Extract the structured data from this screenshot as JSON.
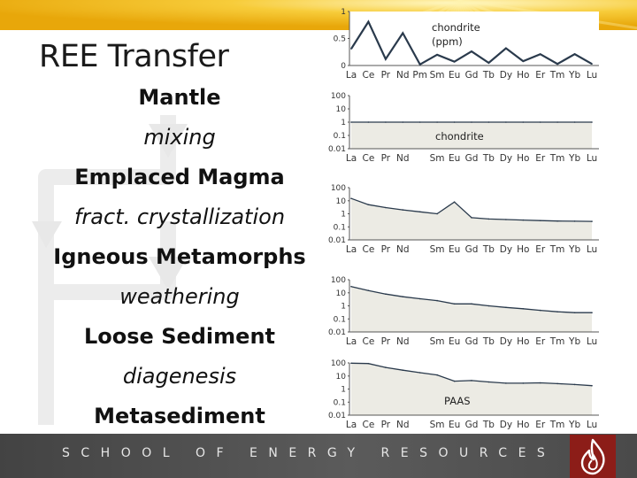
{
  "slide": {
    "title": "REE Transfer",
    "stages": [
      {
        "label": "Mantle",
        "kind": "state"
      },
      {
        "label": "mixing",
        "kind": "process"
      },
      {
        "label": "Emplaced Magma",
        "kind": "state"
      },
      {
        "label": "fract. crystallization",
        "kind": "process"
      },
      {
        "label": "Igneous Metamorphs",
        "kind": "state"
      },
      {
        "label": "weathering",
        "kind": "process"
      },
      {
        "label": "Loose Sediment",
        "kind": "state"
      },
      {
        "label": "diagenesis",
        "kind": "process"
      },
      {
        "label": "Metasediment",
        "kind": "state"
      }
    ],
    "footer": "SCHOOL OF ENERGY RESOURCES"
  },
  "colors": {
    "accent": "#f2b514",
    "plot_fill": "#ecebe4",
    "line": "#2a3a4c",
    "footer": "#4e4e4e"
  },
  "icons": [
    "flame-logo-icon",
    "cycle-arrow-icon"
  ],
  "chart_data": [
    {
      "type": "line",
      "label": "chondrite\n(ppm)",
      "categories": [
        "La",
        "Ce",
        "Pr",
        "Nd",
        "Pm",
        "Sm",
        "Eu",
        "Gd",
        "Tb",
        "Dy",
        "Ho",
        "Er",
        "Tm",
        "Yb",
        "Lu"
      ],
      "values": [
        0.31,
        0.81,
        0.12,
        0.6,
        0.02,
        0.2,
        0.07,
        0.26,
        0.05,
        0.32,
        0.08,
        0.21,
        0.03,
        0.21,
        0.03
      ],
      "ylim": [
        0,
        1
      ],
      "yticks": [
        "0",
        "0.5",
        "1"
      ],
      "yscale": "linear",
      "grid": false
    },
    {
      "type": "area",
      "label": "chondrite",
      "categories": [
        "La",
        "Ce",
        "Pr",
        "Nd",
        "",
        "Sm",
        "Eu",
        "Gd",
        "Tb",
        "Dy",
        "Ho",
        "Er",
        "Tm",
        "Yb",
        "Lu"
      ],
      "values": [
        1,
        1,
        1,
        1,
        1,
        1,
        1,
        1,
        1,
        1,
        1,
        1,
        1,
        1,
        1
      ],
      "ylim": [
        0.01,
        100
      ],
      "yticks": [
        "100",
        "10",
        "1",
        "0.1",
        "0.01"
      ],
      "yscale": "log",
      "grid": false
    },
    {
      "type": "area",
      "label": "",
      "categories": [
        "La",
        "Ce",
        "Pr",
        "Nd",
        "",
        "Sm",
        "Eu",
        "Gd",
        "Tb",
        "Dy",
        "Ho",
        "Er",
        "Tm",
        "Yb",
        "Lu"
      ],
      "values": [
        15,
        5,
        3,
        2,
        1.4,
        1,
        8,
        0.5,
        0.4,
        0.36,
        0.33,
        0.3,
        0.28,
        0.27,
        0.26
      ],
      "ylim": [
        0.01,
        100
      ],
      "yticks": [
        "100",
        "10",
        "1",
        "0.1",
        "0.01"
      ],
      "yscale": "log",
      "grid": false
    },
    {
      "type": "area",
      "label": "",
      "categories": [
        "La",
        "Ce",
        "Pr",
        "Nd",
        "",
        "Sm",
        "Eu",
        "Gd",
        "Tb",
        "Dy",
        "Ho",
        "Er",
        "Tm",
        "Yb",
        "Lu"
      ],
      "values": [
        30,
        15,
        8,
        5,
        3.5,
        2.5,
        1.4,
        1.4,
        1.0,
        0.75,
        0.6,
        0.45,
        0.35,
        0.3,
        0.3
      ],
      "ylim": [
        0.01,
        100
      ],
      "yticks": [
        "100",
        "10",
        "1",
        "0.1",
        "0.01"
      ],
      "yscale": "log",
      "grid": false
    },
    {
      "type": "area",
      "label": "PAAS",
      "categories": [
        "La",
        "Ce",
        "Pr",
        "Nd",
        "",
        "Sm",
        "Eu",
        "Gd",
        "Tb",
        "Dy",
        "Ho",
        "Er",
        "Tm",
        "Yb",
        "Lu"
      ],
      "values": [
        95,
        90,
        45,
        28,
        18,
        12,
        4,
        4.5,
        3.5,
        2.8,
        2.8,
        3,
        2.6,
        2.2,
        1.8
      ],
      "ylim": [
        0.01,
        100
      ],
      "yticks": [
        "100",
        "10",
        "1",
        "0.1",
        "0.01"
      ],
      "yscale": "log",
      "grid": false
    }
  ]
}
